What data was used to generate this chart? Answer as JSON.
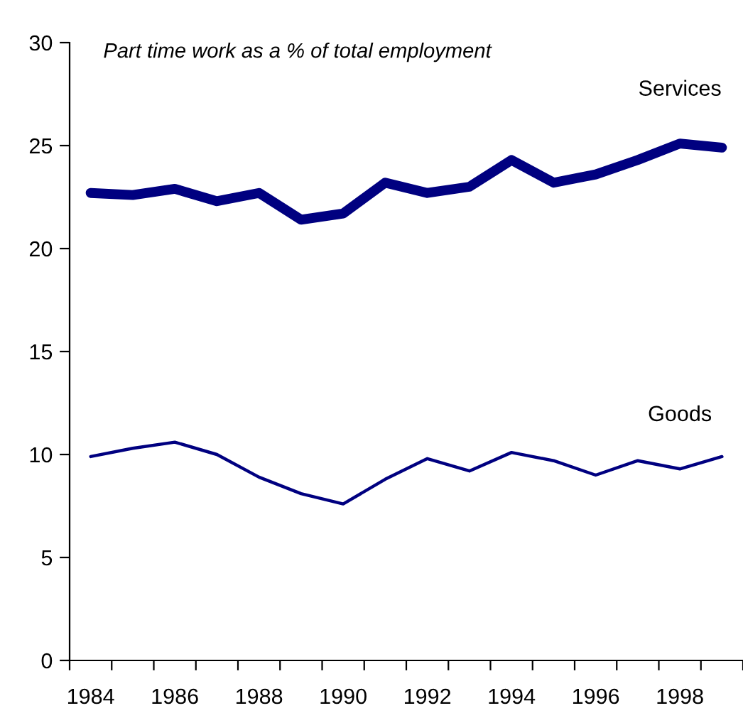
{
  "chart_data": {
    "type": "line",
    "title": "Part time work as a % of total employment",
    "categories": [
      "1984",
      null,
      "1986",
      null,
      "1988",
      null,
      "1990",
      null,
      "1992",
      null,
      "1994",
      null,
      "1996",
      null,
      "1998",
      null
    ],
    "series": [
      {
        "name": "Services",
        "color": "#000080",
        "values": [
          22.7,
          22.6,
          22.9,
          22.3,
          22.7,
          21.4,
          21.7,
          23.2,
          22.7,
          23.0,
          24.3,
          23.2,
          23.6,
          24.3,
          25.1,
          24.9
        ]
      },
      {
        "name": "Goods",
        "color": "#000080",
        "values": [
          9.9,
          10.3,
          10.6,
          10.0,
          8.9,
          8.1,
          7.6,
          8.8,
          9.8,
          9.2,
          10.1,
          9.7,
          9.0,
          9.7,
          9.3,
          9.9
        ]
      }
    ],
    "ylim": [
      0,
      30
    ],
    "yticks": [
      0,
      5,
      10,
      15,
      20,
      25,
      30
    ],
    "grid": false,
    "legend": false,
    "marker": "none",
    "line_style": "solid"
  }
}
